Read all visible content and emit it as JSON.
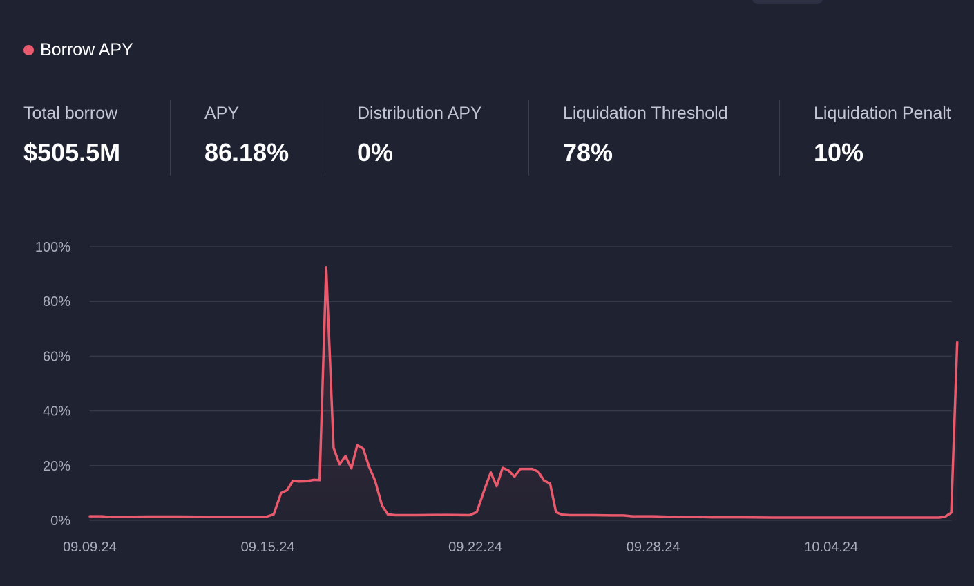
{
  "legend": {
    "label": "Borrow APY",
    "color": "#e85a6c"
  },
  "stats": [
    {
      "label": "Total borrow",
      "value": "$505.5M"
    },
    {
      "label": "APY",
      "value": "86.18%"
    },
    {
      "label": "Distribution APY",
      "value": "0%"
    },
    {
      "label": "Liquidation Threshold",
      "value": "78%"
    },
    {
      "label": "Liquidation Penalt",
      "value": "10%"
    }
  ],
  "chart_data": {
    "type": "area",
    "title": "",
    "xlabel": "",
    "ylabel": "",
    "ylim": [
      0,
      100
    ],
    "yticks": [
      {
        "value": 0,
        "label": "0%"
      },
      {
        "value": 20,
        "label": "20%"
      },
      {
        "value": 40,
        "label": "40%"
      },
      {
        "value": 60,
        "label": "60%"
      },
      {
        "value": 80,
        "label": "80%"
      },
      {
        "value": 100,
        "label": "100%"
      }
    ],
    "xticks": [
      {
        "day": 0,
        "label": "09.09.24"
      },
      {
        "day": 6,
        "label": "09.15.24"
      },
      {
        "day": 13,
        "label": "09.22.24"
      },
      {
        "day": 19,
        "label": "09.28.24"
      },
      {
        "day": 25,
        "label": "10.04.24"
      }
    ],
    "grid": true,
    "series": [
      {
        "color": "#e85a6c",
        "points": [
          [
            0.0,
            1.5
          ],
          [
            0.4,
            1.5
          ],
          [
            0.6,
            1.3
          ],
          [
            1.2,
            1.3
          ],
          [
            2.0,
            1.4
          ],
          [
            3.0,
            1.4
          ],
          [
            4.0,
            1.3
          ],
          [
            5.0,
            1.3
          ],
          [
            5.95,
            1.3
          ],
          [
            6.2,
            2.2
          ],
          [
            6.45,
            10.0
          ],
          [
            6.65,
            11.0
          ],
          [
            6.85,
            14.5
          ],
          [
            7.05,
            14.2
          ],
          [
            7.3,
            14.3
          ],
          [
            7.55,
            14.8
          ],
          [
            7.75,
            14.7
          ],
          [
            7.97,
            92.5
          ],
          [
            8.22,
            26.5
          ],
          [
            8.42,
            20.5
          ],
          [
            8.62,
            23.5
          ],
          [
            8.82,
            19.0
          ],
          [
            9.02,
            27.5
          ],
          [
            9.22,
            26.2
          ],
          [
            9.42,
            19.5
          ],
          [
            9.62,
            14.5
          ],
          [
            9.85,
            5.5
          ],
          [
            10.05,
            2.2
          ],
          [
            10.3,
            1.9
          ],
          [
            11.0,
            1.9
          ],
          [
            12.0,
            2.0
          ],
          [
            12.8,
            1.9
          ],
          [
            13.05,
            3.0
          ],
          [
            13.3,
            11.0
          ],
          [
            13.52,
            17.5
          ],
          [
            13.72,
            12.5
          ],
          [
            13.92,
            19.2
          ],
          [
            14.12,
            18.2
          ],
          [
            14.32,
            16.0
          ],
          [
            14.52,
            18.8
          ],
          [
            14.72,
            18.8
          ],
          [
            14.92,
            18.8
          ],
          [
            15.12,
            17.8
          ],
          [
            15.32,
            14.5
          ],
          [
            15.52,
            13.5
          ],
          [
            15.72,
            3.0
          ],
          [
            15.92,
            2.1
          ],
          [
            16.2,
            1.9
          ],
          [
            17.0,
            1.9
          ],
          [
            17.6,
            1.8
          ],
          [
            18.0,
            1.8
          ],
          [
            18.3,
            1.5
          ],
          [
            19.0,
            1.5
          ],
          [
            19.6,
            1.3
          ],
          [
            20.0,
            1.2
          ],
          [
            20.5,
            1.2
          ],
          [
            21.0,
            1.1
          ],
          [
            22.0,
            1.1
          ],
          [
            23.0,
            1.0
          ],
          [
            24.0,
            1.0
          ],
          [
            25.0,
            1.0
          ],
          [
            26.0,
            1.0
          ],
          [
            27.0,
            1.0
          ],
          [
            28.0,
            1.0
          ],
          [
            28.65,
            1.0
          ],
          [
            28.85,
            1.4
          ],
          [
            29.05,
            2.8
          ],
          [
            29.25,
            65.0
          ]
        ]
      }
    ]
  }
}
